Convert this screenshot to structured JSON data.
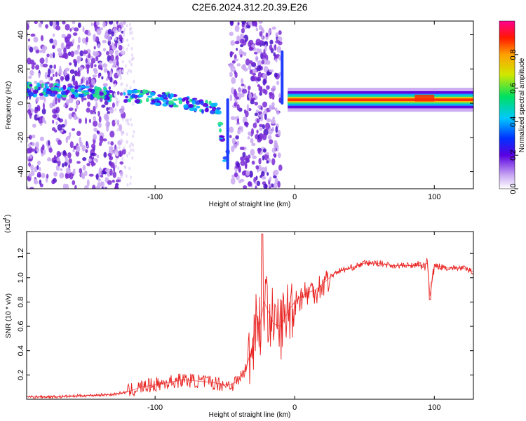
{
  "figure": {
    "title": "C2E6.2024.312.20.39.E26"
  },
  "colors": {
    "axis": "#000000",
    "snr_line": "#e8201e",
    "noise_purple": "#7a2bd6",
    "noise_light": "#c9a8f2"
  },
  "chart_data": [
    {
      "type": "heatmap",
      "title": "C2E6.2024.312.20.39.E26",
      "xlabel": "Height of straight line (km)",
      "ylabel": "Frequency (Hz)",
      "xlim": [
        -192,
        128
      ],
      "ylim": [
        -50,
        48
      ],
      "xticks": [
        -100,
        0,
        100
      ],
      "yticks": [
        -40,
        -20,
        0,
        20,
        40
      ],
      "colorbar": {
        "label": "Normalized spectral amplitude",
        "range": [
          0,
          1
        ],
        "ticks": [
          "0.0",
          "0.2",
          "0.4",
          "0.6",
          "0.8"
        ],
        "colormap": "rainbow"
      },
      "ridge": {
        "description_points_x": [
          -192,
          -180,
          -130,
          -110,
          -90,
          -70,
          -55,
          -50,
          -20,
          -10,
          0,
          40,
          80,
          95,
          105,
          128
        ],
        "frequency_hz": [
          8,
          8,
          5,
          4,
          2,
          -1,
          -3,
          -35,
          30,
          -5,
          2,
          2,
          2,
          4,
          2,
          2
        ]
      }
    },
    {
      "type": "line",
      "xlabel": "Height of straight line (km)",
      "ylabel": "SNR (10 * v/v)",
      "yscale_label": "(x10",
      "yscale_exp": "4",
      "xlim": [
        -192,
        128
      ],
      "ylim": [
        0,
        1.38
      ],
      "xticks": [
        -100,
        0,
        100
      ],
      "yticks": [
        0.2,
        0.4,
        0.6,
        0.8,
        1.0,
        1.2
      ],
      "ytick_labels": [
        "0.2",
        "0.4",
        "0.6",
        "0.8",
        "1.0",
        "1.2"
      ],
      "series": [
        {
          "x": [
            -192,
            -170,
            -150,
            -130,
            -120,
            -110,
            -100,
            -90,
            -80,
            -70,
            -60,
            -50,
            -45,
            -40,
            -35,
            -30,
            -28,
            -25,
            -22,
            -20,
            -18,
            -15,
            -10,
            -5,
            0,
            5,
            10,
            15,
            20,
            25,
            30,
            40,
            50,
            60,
            70,
            80,
            90,
            95,
            97,
            100,
            110,
            120,
            128
          ],
          "y": [
            0.02,
            0.02,
            0.03,
            0.04,
            0.06,
            0.1,
            0.12,
            0.14,
            0.16,
            0.15,
            0.14,
            0.12,
            0.12,
            0.16,
            0.25,
            0.45,
            0.7,
            0.6,
            0.8,
            0.75,
            0.7,
            0.62,
            0.6,
            0.72,
            0.8,
            0.85,
            0.88,
            0.9,
            0.95,
            1.0,
            1.05,
            1.08,
            1.12,
            1.12,
            1.1,
            1.1,
            1.1,
            1.12,
            0.85,
            1.1,
            1.08,
            1.08,
            1.05
          ]
        }
      ]
    }
  ]
}
